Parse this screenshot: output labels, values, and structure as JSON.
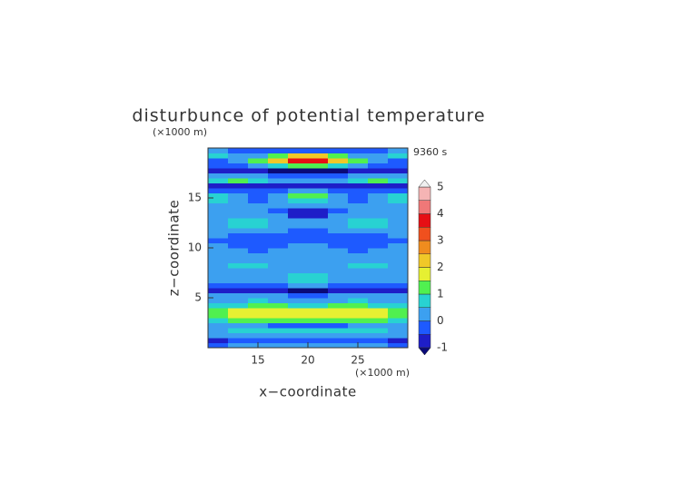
{
  "chart_data": {
    "type": "contour",
    "title": "disturbunce of potential temperature",
    "y_unit": "(×1000 m)",
    "x_unit": "(×1000 m)",
    "time_label": "9360 s",
    "xlabel": "x−coordinate",
    "ylabel": "z−coordinate",
    "xlim": [
      10,
      30
    ],
    "ylim": [
      0,
      20
    ],
    "xticks": [
      15,
      20,
      25
    ],
    "yticks": [
      5,
      10,
      15
    ],
    "x": [
      11,
      13,
      15,
      17,
      19,
      21,
      23,
      25,
      27,
      29
    ],
    "y": [
      0.25,
      0.75,
      1.25,
      1.75,
      2.25,
      2.75,
      3.25,
      3.75,
      4.25,
      4.75,
      5.25,
      5.75,
      6.25,
      6.75,
      7.25,
      7.75,
      8.25,
      8.75,
      9.25,
      9.75,
      10.25,
      10.75,
      11.25,
      11.75,
      12.25,
      12.75,
      13.25,
      13.75,
      14.25,
      14.75,
      15.25,
      15.75,
      16.25,
      16.75,
      17.25,
      17.75,
      18.25,
      18.75,
      19.25,
      19.75
    ],
    "z": [
      [
        -0.3,
        0.2,
        0.2,
        0.3,
        0.3,
        0.3,
        0.3,
        0.2,
        0.2,
        -0.3
      ],
      [
        -0.6,
        -0.3,
        -0.2,
        -0.2,
        -0.2,
        -0.2,
        -0.2,
        -0.2,
        -0.3,
        -0.6
      ],
      [
        0.2,
        0.3,
        0.4,
        0.4,
        0.4,
        0.4,
        0.4,
        0.4,
        0.3,
        0.2
      ],
      [
        0.3,
        0.6,
        0.7,
        0.7,
        0.7,
        0.7,
        0.7,
        0.7,
        0.6,
        0.3
      ],
      [
        0.2,
        0.3,
        0.2,
        -0.2,
        -0.3,
        -0.3,
        -0.2,
        0.2,
        0.3,
        0.2
      ],
      [
        0.6,
        1.2,
        1.3,
        1.2,
        1.1,
        1.1,
        1.2,
        1.3,
        1.2,
        0.6
      ],
      [
        1.1,
        1.7,
        1.9,
        1.8,
        1.7,
        1.7,
        1.8,
        1.9,
        1.7,
        1.1
      ],
      [
        1.2,
        1.6,
        1.7,
        1.6,
        1.5,
        1.5,
        1.6,
        1.7,
        1.6,
        1.2
      ],
      [
        0.7,
        0.9,
        1.1,
        1.0,
        0.9,
        0.9,
        1.0,
        1.1,
        0.9,
        0.7
      ],
      [
        0.3,
        0.4,
        0.5,
        0.4,
        0.3,
        0.3,
        0.4,
        0.5,
        0.4,
        0.3
      ],
      [
        0.2,
        0.2,
        0.3,
        0.2,
        -0.3,
        -0.3,
        0.2,
        0.3,
        0.2,
        0.2
      ],
      [
        -0.7,
        -0.8,
        -0.6,
        -0.7,
        -1.1,
        -1.1,
        -0.7,
        -0.6,
        -0.8,
        -0.7
      ],
      [
        -0.3,
        -0.3,
        -0.2,
        -0.3,
        0.3,
        0.3,
        -0.3,
        -0.2,
        -0.3,
        -0.3
      ],
      [
        0.2,
        0.3,
        0.3,
        0.4,
        0.8,
        0.8,
        0.4,
        0.3,
        0.3,
        0.2
      ],
      [
        0.3,
        0.3,
        0.2,
        0.2,
        0.6,
        0.6,
        0.2,
        0.2,
        0.3,
        0.3
      ],
      [
        0.3,
        0.4,
        0.4,
        0.3,
        0.3,
        0.3,
        0.3,
        0.4,
        0.4,
        0.3
      ],
      [
        0.4,
        0.6,
        0.6,
        0.4,
        0.3,
        0.3,
        0.4,
        0.6,
        0.6,
        0.4
      ],
      [
        0.3,
        0.4,
        0.4,
        0.3,
        0.2,
        0.2,
        0.3,
        0.4,
        0.4,
        0.3
      ],
      [
        0.2,
        0.3,
        0.3,
        0.2,
        0.2,
        0.2,
        0.2,
        0.3,
        0.3,
        0.2
      ],
      [
        0.2,
        0.2,
        -0.2,
        0.2,
        0.3,
        0.3,
        0.2,
        -0.2,
        0.2,
        0.2
      ],
      [
        0.2,
        -0.2,
        -0.3,
        -0.2,
        0.2,
        0.2,
        -0.2,
        -0.3,
        -0.2,
        0.2
      ],
      [
        -0.2,
        -0.2,
        -0.3,
        -0.3,
        -0.2,
        -0.2,
        -0.3,
        -0.3,
        -0.2,
        -0.2
      ],
      [
        0.2,
        -0.2,
        -0.2,
        -0.3,
        -0.3,
        -0.3,
        -0.3,
        -0.2,
        -0.2,
        0.2
      ],
      [
        0.3,
        0.3,
        0.4,
        0.2,
        -0.2,
        -0.2,
        0.2,
        0.4,
        0.3,
        0.3
      ],
      [
        0.3,
        0.6,
        0.8,
        0.3,
        0.2,
        0.2,
        0.3,
        0.8,
        0.6,
        0.3
      ],
      [
        0.3,
        0.7,
        0.9,
        0.3,
        0.2,
        0.2,
        0.3,
        0.9,
        0.7,
        0.3
      ],
      [
        0.3,
        0.4,
        0.4,
        0.2,
        -0.6,
        -0.6,
        0.2,
        0.4,
        0.4,
        0.3
      ],
      [
        0.2,
        0.3,
        0.2,
        -0.2,
        -0.7,
        -0.7,
        -0.2,
        0.2,
        0.3,
        0.2
      ],
      [
        0.3,
        0.3,
        0.3,
        0.3,
        0.2,
        0.2,
        0.3,
        0.3,
        0.3,
        0.3
      ],
      [
        0.6,
        0.3,
        -0.2,
        0.3,
        0.7,
        0.7,
        0.3,
        -0.2,
        0.3,
        0.6
      ],
      [
        0.7,
        0.3,
        -0.3,
        0.4,
        1.2,
        1.2,
        0.4,
        -0.3,
        0.3,
        0.7
      ],
      [
        -0.3,
        -0.2,
        -0.3,
        -0.2,
        0.2,
        0.2,
        -0.2,
        -0.3,
        -0.2,
        -0.3
      ],
      [
        -0.7,
        -0.7,
        -0.8,
        -0.7,
        -0.6,
        -0.6,
        -0.7,
        -0.8,
        -0.7,
        -0.7
      ],
      [
        0.6,
        1.0,
        0.7,
        0.3,
        0.3,
        0.3,
        0.3,
        0.7,
        1.0,
        0.6
      ],
      [
        0.2,
        0.3,
        0.3,
        -0.2,
        -0.3,
        -0.3,
        -0.2,
        0.3,
        0.3,
        0.2
      ],
      [
        -0.6,
        -0.7,
        -0.8,
        -1.1,
        -1.2,
        -1.2,
        -1.1,
        -0.8,
        -0.7,
        -0.6
      ],
      [
        -0.3,
        -0.2,
        0.3,
        0.8,
        1.3,
        1.3,
        0.8,
        0.3,
        -0.2,
        -0.3
      ],
      [
        -0.2,
        0.3,
        1.2,
        2.3,
        3.8,
        3.8,
        2.3,
        1.2,
        0.3,
        -0.2
      ],
      [
        0.7,
        0.3,
        0.3,
        1.2,
        2.2,
        2.2,
        1.2,
        0.3,
        0.3,
        0.7
      ],
      [
        0.3,
        -0.2,
        -0.3,
        -0.2,
        -0.2,
        -0.2,
        -0.2,
        -0.3,
        -0.2,
        0.3
      ]
    ],
    "levels": [
      -1,
      -0.5,
      0,
      0.5,
      1,
      1.5,
      2,
      2.5,
      3,
      3.5,
      4,
      4.5,
      5
    ],
    "colors": [
      "#0a0a78",
      "#1e1ec8",
      "#1e5aff",
      "#3ca0f0",
      "#28d2d2",
      "#50f050",
      "#e6f032",
      "#f0c828",
      "#f08c1e",
      "#f0501e",
      "#e60f14",
      "#f07878",
      "#f5b4b4",
      "#f0f0f0"
    ],
    "colorbar_ticks": [
      -1,
      0,
      1,
      2,
      3,
      4,
      5
    ]
  }
}
